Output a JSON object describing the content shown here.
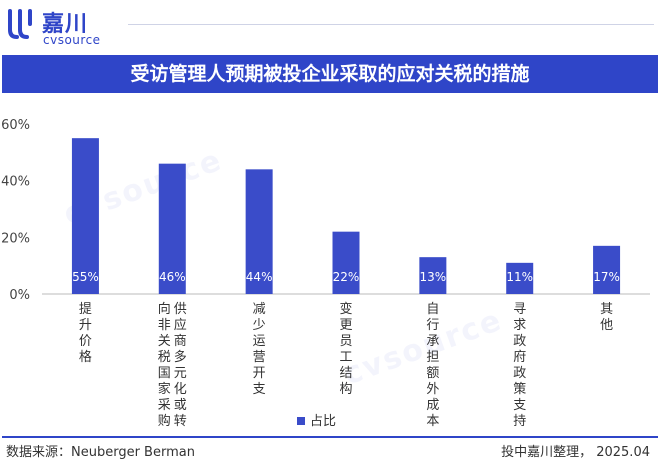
{
  "header": {
    "logo_cn": "嘉川",
    "logo_en": "cvsource"
  },
  "title": "受访管理人预期被投企业采取的应对关税的措施",
  "watermark": "cvsource",
  "footer": {
    "source": "数据来源：Neuberger Berman",
    "credit": "投中嘉川整理，  2025.04"
  },
  "colors": {
    "accent": "#2f45c8",
    "bar": "#3a4cc9"
  },
  "chart_data": {
    "type": "bar",
    "categories": [
      "提升价格",
      "向非关税国家采购供应商多元化或转",
      "减少运营开支",
      "变更员工结构",
      "自行承担额外成本",
      "寻求政府政策支持",
      "其他"
    ],
    "category_lines": [
      [
        "提升价格"
      ],
      [
        "向非关税国家采购",
        "供应商多元化或转"
      ],
      [
        "减少运营开支"
      ],
      [
        "变更员工结构"
      ],
      [
        "自行承担额外成本"
      ],
      [
        "寻求政府政策支持"
      ],
      [
        "其他"
      ]
    ],
    "series": [
      {
        "name": "占比",
        "values": [
          55,
          46,
          44,
          22,
          13,
          11,
          17
        ]
      }
    ],
    "data_labels": [
      "55%",
      "46%",
      "44%",
      "22%",
      "13%",
      "11%",
      "17%"
    ],
    "yticks": [
      "0%",
      "20%",
      "40%",
      "60%"
    ],
    "ylim": [
      0,
      60
    ],
    "legend_position": "bottom"
  }
}
